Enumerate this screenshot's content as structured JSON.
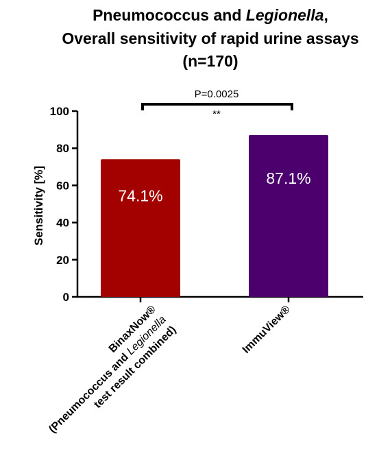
{
  "chart_data": {
    "type": "bar",
    "title_line1_a": "Pneumococcus and ",
    "title_line1_b": "Legionella",
    "title_line1_c": ",",
    "title_line2": "Overall sensitivity of rapid urine assays",
    "title_line3": "(n=170)",
    "ylabel": "Sensitivity [%]",
    "ylim": [
      0,
      100
    ],
    "yticks": [
      "0",
      "20",
      "40",
      "60",
      "80",
      "100"
    ],
    "categories": [
      {
        "line1": "BinaxNow®",
        "line2_a": "(Pneumococcus and ",
        "line2_b": "Legionella",
        "line3": "test result combined)"
      },
      {
        "line1": "ImmuView®"
      }
    ],
    "values": [
      74.1,
      87.1
    ],
    "data_labels": [
      "74.1%",
      "87.1%"
    ],
    "bar_colors": [
      "#a30000",
      "#4b006e"
    ],
    "significance": {
      "p_text": "P=0.0025",
      "stars": "**"
    },
    "grid": false
  }
}
